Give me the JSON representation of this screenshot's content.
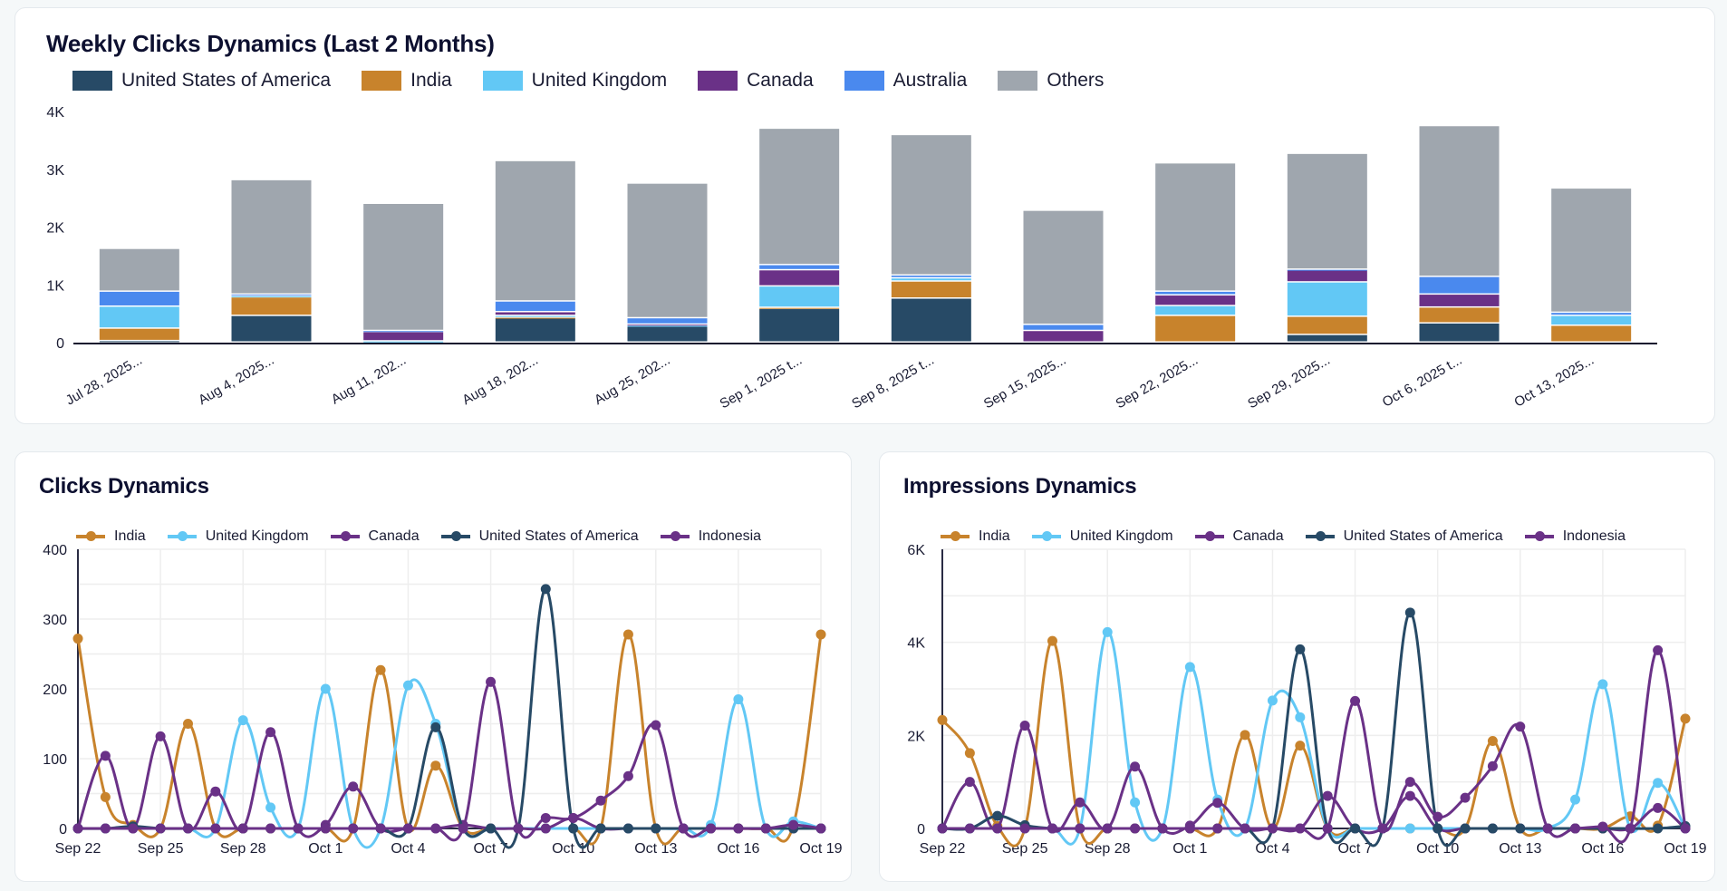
{
  "colors": {
    "United States of America": "#274a66",
    "India": "#c8832c",
    "United Kingdom": "#62c8f5",
    "Canada": "#6a3187",
    "Australia": "#4a89ee",
    "Others": "#9fa6ae",
    "Indonesia": "#6a3187"
  },
  "chart_data": [
    {
      "type": "bar",
      "stacked": true,
      "title": "Weekly Clicks Dynamics (Last 2 Months)",
      "legend_position": "top-left",
      "ylim": [
        0,
        4000
      ],
      "yticks": [
        "0",
        "1K",
        "2K",
        "3K",
        "4K"
      ],
      "grid": false,
      "categories": [
        "Jul 28, 2025...",
        "Aug 4, 2025...",
        "Aug 11, 202...",
        "Aug 18, 202...",
        "Aug 25, 202...",
        "Sep 1, 2025 t...",
        "Sep 8, 2025 t...",
        "Sep 15, 2025...",
        "Sep 22, 2025...",
        "Sep 29, 2025...",
        "Oct 6, 2025 t...",
        "Oct 13, 2025..."
      ],
      "series": [
        {
          "name": "United States of America",
          "values": [
            25,
            460,
            0,
            420,
            280,
            580,
            760,
            0,
            0,
            130,
            330,
            0
          ]
        },
        {
          "name": "India",
          "values": [
            215,
            320,
            0,
            10,
            0,
            20,
            295,
            0,
            460,
            315,
            275,
            290
          ]
        },
        {
          "name": "United Kingdom",
          "values": [
            380,
            20,
            20,
            30,
            10,
            370,
            55,
            0,
            170,
            595,
            0,
            170
          ]
        },
        {
          "name": "Canada",
          "values": [
            0,
            0,
            160,
            65,
            20,
            280,
            0,
            200,
            185,
            210,
            225,
            0
          ]
        },
        {
          "name": "Australia",
          "values": [
            260,
            30,
            20,
            185,
            110,
            90,
            50,
            105,
            65,
            10,
            305,
            55
          ]
        },
        {
          "name": "Others",
          "values": [
            740,
            1980,
            2200,
            2430,
            2330,
            2360,
            2430,
            1975,
            2220,
            2005,
            2610,
            2150
          ]
        }
      ]
    },
    {
      "type": "line",
      "title": "Clicks Dynamics",
      "legend_position": "top",
      "ylim": [
        0,
        400
      ],
      "yticks": [
        "0",
        "100",
        "200",
        "300",
        "400"
      ],
      "grid": true,
      "x": [
        "Sep 22",
        "Sep 23",
        "Sep 24",
        "Sep 25",
        "Sep 26",
        "Sep 27",
        "Sep 28",
        "Sep 29",
        "Sep 30",
        "Oct 1",
        "Oct 2",
        "Oct 3",
        "Oct 4",
        "Oct 5",
        "Oct 6",
        "Oct 7",
        "Oct 8",
        "Oct 9",
        "Oct 10",
        "Oct 11",
        "Oct 12",
        "Oct 13",
        "Oct 14",
        "Oct 15",
        "Oct 16",
        "Oct 17",
        "Oct 18",
        "Oct 19"
      ],
      "xticks": [
        "Sep 22",
        "Sep 25",
        "Sep 28",
        "Oct 1",
        "Oct 4",
        "Oct 7",
        "Oct 10",
        "Oct 13",
        "Oct 16",
        "Oct 19"
      ],
      "series": [
        {
          "name": "India",
          "values": [
            272,
            45,
            5,
            0,
            150,
            0,
            0,
            0,
            0,
            0,
            0,
            227,
            0,
            90,
            0,
            0,
            0,
            0,
            0,
            0,
            278,
            0,
            0,
            0,
            0,
            0,
            5,
            278
          ]
        },
        {
          "name": "United Kingdom",
          "values": [
            0,
            0,
            0,
            0,
            0,
            0,
            155,
            30,
            0,
            200,
            0,
            0,
            205,
            150,
            0,
            0,
            0,
            0,
            0,
            0,
            0,
            0,
            0,
            5,
            185,
            0,
            10,
            0
          ]
        },
        {
          "name": "Canada",
          "values": [
            0,
            104,
            0,
            132,
            0,
            53,
            0,
            138,
            0,
            5,
            60,
            0,
            0,
            0,
            5,
            0,
            0,
            0,
            15,
            0,
            0,
            0,
            0,
            0,
            0,
            0,
            0,
            0
          ]
        },
        {
          "name": "United States of America",
          "values": [
            0,
            0,
            3,
            0,
            0,
            0,
            0,
            0,
            0,
            0,
            0,
            0,
            0,
            145,
            0,
            0,
            0,
            343,
            0,
            0,
            0,
            0,
            0,
            0,
            0,
            0,
            0,
            0
          ]
        },
        {
          "name": "Indonesia",
          "values": [
            0,
            0,
            0,
            0,
            0,
            0,
            0,
            0,
            0,
            0,
            0,
            0,
            0,
            0,
            0,
            210,
            0,
            15,
            15,
            40,
            75,
            148,
            0,
            0,
            0,
            0,
            5,
            0
          ]
        }
      ]
    },
    {
      "type": "line",
      "title": "Impressions Dynamics",
      "legend_position": "top",
      "ylim": [
        0,
        6000
      ],
      "yticks": [
        "0",
        "2K",
        "4K",
        "6K"
      ],
      "grid": true,
      "x": [
        "Sep 22",
        "Sep 23",
        "Sep 24",
        "Sep 25",
        "Sep 26",
        "Sep 27",
        "Sep 28",
        "Sep 29",
        "Sep 30",
        "Oct 1",
        "Oct 2",
        "Oct 3",
        "Oct 4",
        "Oct 5",
        "Oct 6",
        "Oct 7",
        "Oct 8",
        "Oct 9",
        "Oct 10",
        "Oct 11",
        "Oct 12",
        "Oct 13",
        "Oct 14",
        "Oct 15",
        "Oct 16",
        "Oct 17",
        "Oct 18",
        "Oct 19"
      ],
      "xticks": [
        "Sep 22",
        "Sep 25",
        "Sep 28",
        "Oct 1",
        "Oct 4",
        "Oct 7",
        "Oct 10",
        "Oct 13",
        "Oct 16",
        "Oct 19"
      ],
      "series": [
        {
          "name": "India",
          "values": [
            2330,
            1620,
            50,
            0,
            4030,
            0,
            0,
            0,
            0,
            0,
            0,
            2010,
            0,
            1780,
            0,
            0,
            0,
            0,
            0,
            0,
            1880,
            0,
            0,
            0,
            0,
            260,
            60,
            2360
          ]
        },
        {
          "name": "United Kingdom",
          "values": [
            0,
            0,
            0,
            0,
            0,
            0,
            4220,
            560,
            0,
            3470,
            620,
            0,
            2750,
            2390,
            0,
            0,
            0,
            0,
            0,
            0,
            0,
            0,
            0,
            620,
            3100,
            0,
            980,
            0
          ]
        },
        {
          "name": "Canada",
          "values": [
            0,
            1000,
            0,
            2210,
            0,
            560,
            0,
            1330,
            0,
            60,
            550,
            0,
            0,
            0,
            700,
            0,
            0,
            700,
            0,
            0,
            0,
            0,
            0,
            0,
            0,
            0,
            440,
            0
          ]
        },
        {
          "name": "United States of America",
          "values": [
            0,
            0,
            270,
            70,
            0,
            0,
            0,
            0,
            0,
            0,
            0,
            0,
            0,
            3850,
            0,
            0,
            0,
            4640,
            0,
            0,
            0,
            0,
            0,
            0,
            0,
            0,
            0,
            50
          ]
        },
        {
          "name": "Indonesia",
          "values": [
            0,
            0,
            0,
            0,
            0,
            0,
            0,
            0,
            0,
            0,
            0,
            0,
            0,
            0,
            0,
            2740,
            0,
            1000,
            250,
            660,
            1340,
            2190,
            0,
            0,
            40,
            0,
            3830,
            0
          ]
        }
      ]
    }
  ]
}
